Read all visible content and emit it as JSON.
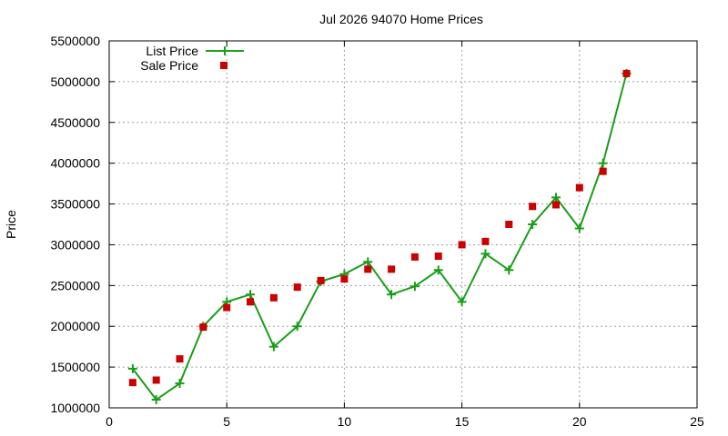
{
  "chart_data": {
    "type": "line",
    "title": "Jul 2026 94070 Home Prices",
    "xlabel": "",
    "ylabel": "Price",
    "xlim": [
      0,
      25
    ],
    "ylim": [
      1000000,
      5500000
    ],
    "x_ticks": [
      0,
      5,
      10,
      15,
      20,
      25
    ],
    "y_ticks": [
      1000000,
      1500000,
      2000000,
      2500000,
      3000000,
      3500000,
      4000000,
      4500000,
      5000000,
      5500000
    ],
    "grid": true,
    "legend_position": "top-left",
    "series": [
      {
        "name": "List Price",
        "style": "line-plus",
        "color": "#1a9e1a",
        "x": [
          1,
          2,
          3,
          4,
          5,
          6,
          7,
          8,
          9,
          10,
          11,
          12,
          13,
          14,
          15,
          16,
          17,
          18,
          19,
          20,
          21,
          22
        ],
        "y": [
          1480000,
          1100000,
          1300000,
          2000000,
          2300000,
          2390000,
          1750000,
          2000000,
          2550000,
          2640000,
          2790000,
          2390000,
          2490000,
          2690000,
          2300000,
          2890000,
          2690000,
          3250000,
          3580000,
          3200000,
          4000000,
          5100000
        ]
      },
      {
        "name": "Sale Price",
        "style": "square",
        "color": "#cc0000",
        "x": [
          1,
          2,
          3,
          4,
          5,
          6,
          7,
          8,
          9,
          10,
          11,
          12,
          13,
          14,
          15,
          16,
          17,
          18,
          19,
          20,
          21,
          22
        ],
        "y": [
          1310000,
          1340000,
          1600000,
          1990000,
          2230000,
          2300000,
          2350000,
          2480000,
          2560000,
          2580000,
          2700000,
          2700000,
          2850000,
          2860000,
          3000000,
          3040000,
          3250000,
          3470000,
          3490000,
          3700000,
          3900000,
          5100000
        ]
      }
    ]
  }
}
